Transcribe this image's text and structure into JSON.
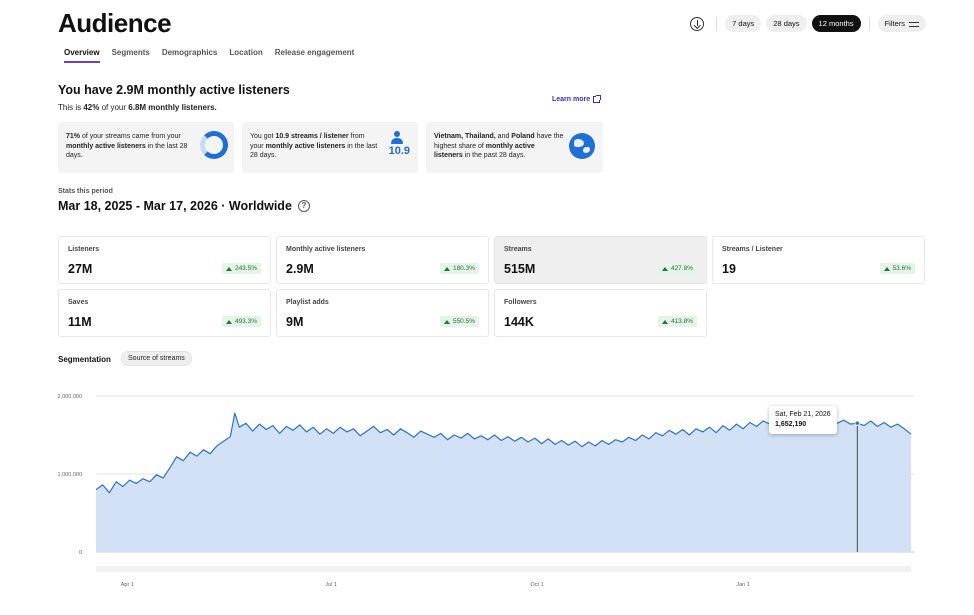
{
  "page": {
    "title": "Audience"
  },
  "tabs": [
    {
      "label": "Overview",
      "active": true
    },
    {
      "label": "Segments"
    },
    {
      "label": "Demographics"
    },
    {
      "label": "Location"
    },
    {
      "label": "Release engagement"
    }
  ],
  "controls": {
    "download_icon": "download-icon",
    "ranges": [
      {
        "label": "7 days"
      },
      {
        "label": "28 days"
      },
      {
        "label": "12 months",
        "active": true
      }
    ],
    "filters_label": "Filters"
  },
  "headline": {
    "title": "You have 2.9M monthly active listeners",
    "sub_prefix": "This is ",
    "sub_pct": "42%",
    "sub_mid": " of your ",
    "sub_total": "6.8M monthly listeners.",
    "learn_more": "Learn more"
  },
  "insights": [
    {
      "p1": "71%",
      "p2": " of your streams came from your ",
      "p3": "monthly active listeners",
      "p4": " in the last 28 days."
    },
    {
      "p1": "You got ",
      "p2": "10.9 streams / listener",
      "p3": " from your ",
      "p4": "monthly active listeners",
      "p5": " in the last 28 days.",
      "big": "10.9"
    },
    {
      "p1": "Vietnam, Thailand,",
      "p2": " and ",
      "p3": "Poland",
      "p4": " have the highest share of ",
      "p5": "monthly active listeners",
      "p6": " in the past 28 days."
    }
  ],
  "stats": {
    "label": "Stats this period",
    "period": "Mar 18, 2025 - Mar 17, 2026 · Worldwide",
    "help": "?"
  },
  "metrics": [
    {
      "label": "Listeners",
      "value": "27M",
      "change": "243.5%"
    },
    {
      "label": "Monthly active listeners",
      "value": "2.9M",
      "change": "180.3%"
    },
    {
      "label": "Streams",
      "value": "515M",
      "change": "427.8%",
      "active": true
    },
    {
      "label": "Streams / Listener",
      "value": "19",
      "change": "53.6%"
    },
    {
      "label": "Saves",
      "value": "11M",
      "change": "493.3%"
    },
    {
      "label": "Playlist adds",
      "value": "9M",
      "change": "550.5%"
    },
    {
      "label": "Followers",
      "value": "144K",
      "change": "413.8%"
    }
  ],
  "segmentation": {
    "title": "Segmentation",
    "chip": "Source of streams"
  },
  "tooltip": {
    "date": "Sat, Feb 21, 2026",
    "value": "1,652,190"
  },
  "colors": {
    "line": "#2d73c8",
    "fill": "#d3e1f7",
    "accent": "#6b3fd1",
    "positive": "#1a7a32"
  },
  "chart_data": {
    "type": "area",
    "ylim": [
      0,
      2000000
    ],
    "yticks": [
      {
        "value": 0,
        "label": "0"
      },
      {
        "value": 1000000,
        "label": "1,000,000"
      },
      {
        "value": 2000000,
        "label": "2,000,000"
      }
    ],
    "xticks": [
      {
        "x": "2025-04-01",
        "label": "Apr 1"
      },
      {
        "x": "2025-07-01",
        "label": "Jul 1"
      },
      {
        "x": "2025-10-01",
        "label": "Oct 1"
      },
      {
        "x": "2026-01-01",
        "label": "Jan 1"
      }
    ],
    "xrange": [
      "2025-03-18",
      "2026-03-17"
    ],
    "highlight": {
      "x": "2026-02-21",
      "y": 1652190
    },
    "series": [
      {
        "points": [
          [
            "2025-03-18",
            800000
          ],
          [
            "2025-03-21",
            860000
          ],
          [
            "2025-03-24",
            760000
          ],
          [
            "2025-03-27",
            900000
          ],
          [
            "2025-03-30",
            840000
          ],
          [
            "2025-04-02",
            920000
          ],
          [
            "2025-04-05",
            880000
          ],
          [
            "2025-04-08",
            940000
          ],
          [
            "2025-04-11",
            900000
          ],
          [
            "2025-04-14",
            990000
          ],
          [
            "2025-04-17",
            950000
          ],
          [
            "2025-04-20",
            1080000
          ],
          [
            "2025-04-23",
            1220000
          ],
          [
            "2025-04-26",
            1170000
          ],
          [
            "2025-04-29",
            1280000
          ],
          [
            "2025-05-02",
            1230000
          ],
          [
            "2025-05-05",
            1310000
          ],
          [
            "2025-05-08",
            1260000
          ],
          [
            "2025-05-11",
            1360000
          ],
          [
            "2025-05-14",
            1420000
          ],
          [
            "2025-05-17",
            1480000
          ],
          [
            "2025-05-19",
            1780000
          ],
          [
            "2025-05-21",
            1600000
          ],
          [
            "2025-05-24",
            1650000
          ],
          [
            "2025-05-27",
            1550000
          ],
          [
            "2025-05-30",
            1640000
          ],
          [
            "2025-06-02",
            1570000
          ],
          [
            "2025-06-05",
            1620000
          ],
          [
            "2025-06-08",
            1520000
          ],
          [
            "2025-06-11",
            1610000
          ],
          [
            "2025-06-14",
            1560000
          ],
          [
            "2025-06-17",
            1630000
          ],
          [
            "2025-06-20",
            1540000
          ],
          [
            "2025-06-23",
            1600000
          ],
          [
            "2025-06-26",
            1510000
          ],
          [
            "2025-06-29",
            1580000
          ],
          [
            "2025-07-02",
            1520000
          ],
          [
            "2025-07-05",
            1600000
          ],
          [
            "2025-07-08",
            1540000
          ],
          [
            "2025-07-11",
            1580000
          ],
          [
            "2025-07-14",
            1490000
          ],
          [
            "2025-07-17",
            1550000
          ],
          [
            "2025-07-20",
            1610000
          ],
          [
            "2025-07-23",
            1530000
          ],
          [
            "2025-07-26",
            1570000
          ],
          [
            "2025-07-29",
            1500000
          ],
          [
            "2025-08-01",
            1580000
          ],
          [
            "2025-08-04",
            1530000
          ],
          [
            "2025-08-07",
            1470000
          ],
          [
            "2025-08-10",
            1550000
          ],
          [
            "2025-08-13",
            1510000
          ],
          [
            "2025-08-16",
            1470000
          ],
          [
            "2025-08-19",
            1520000
          ],
          [
            "2025-08-22",
            1440000
          ],
          [
            "2025-08-25",
            1500000
          ],
          [
            "2025-08-28",
            1460000
          ],
          [
            "2025-08-31",
            1520000
          ],
          [
            "2025-09-03",
            1450000
          ],
          [
            "2025-09-06",
            1490000
          ],
          [
            "2025-09-09",
            1440000
          ],
          [
            "2025-09-12",
            1500000
          ],
          [
            "2025-09-15",
            1430000
          ],
          [
            "2025-09-18",
            1480000
          ],
          [
            "2025-09-21",
            1420000
          ],
          [
            "2025-09-24",
            1470000
          ],
          [
            "2025-09-27",
            1410000
          ],
          [
            "2025-09-30",
            1460000
          ],
          [
            "2025-10-03",
            1390000
          ],
          [
            "2025-10-06",
            1450000
          ],
          [
            "2025-10-09",
            1380000
          ],
          [
            "2025-10-12",
            1430000
          ],
          [
            "2025-10-15",
            1370000
          ],
          [
            "2025-10-18",
            1420000
          ],
          [
            "2025-10-21",
            1350000
          ],
          [
            "2025-10-24",
            1410000
          ],
          [
            "2025-10-27",
            1360000
          ],
          [
            "2025-10-30",
            1430000
          ],
          [
            "2025-11-02",
            1380000
          ],
          [
            "2025-11-05",
            1440000
          ],
          [
            "2025-11-08",
            1410000
          ],
          [
            "2025-11-11",
            1470000
          ],
          [
            "2025-11-14",
            1430000
          ],
          [
            "2025-11-17",
            1500000
          ],
          [
            "2025-11-20",
            1450000
          ],
          [
            "2025-11-23",
            1530000
          ],
          [
            "2025-11-26",
            1490000
          ],
          [
            "2025-11-29",
            1560000
          ],
          [
            "2025-12-02",
            1510000
          ],
          [
            "2025-12-05",
            1570000
          ],
          [
            "2025-12-08",
            1500000
          ],
          [
            "2025-12-11",
            1580000
          ],
          [
            "2025-12-14",
            1540000
          ],
          [
            "2025-12-17",
            1600000
          ],
          [
            "2025-12-20",
            1530000
          ],
          [
            "2025-12-23",
            1620000
          ],
          [
            "2025-12-26",
            1560000
          ],
          [
            "2025-12-29",
            1640000
          ],
          [
            "2026-01-01",
            1580000
          ],
          [
            "2026-01-04",
            1660000
          ],
          [
            "2026-01-07",
            1610000
          ],
          [
            "2026-01-10",
            1680000
          ],
          [
            "2026-01-13",
            1640000
          ],
          [
            "2026-01-16",
            1700000
          ],
          [
            "2026-01-19",
            1650000
          ],
          [
            "2026-01-22",
            1720000
          ],
          [
            "2026-01-25",
            1680000
          ],
          [
            "2026-01-28",
            1740000
          ],
          [
            "2026-01-31",
            1690000
          ],
          [
            "2026-02-03",
            1760000
          ],
          [
            "2026-02-06",
            1710000
          ],
          [
            "2026-02-09",
            1700000
          ],
          [
            "2026-02-12",
            1650000
          ],
          [
            "2026-02-15",
            1690000
          ],
          [
            "2026-02-18",
            1640000
          ],
          [
            "2026-02-21",
            1652190
          ],
          [
            "2026-02-24",
            1620000
          ],
          [
            "2026-02-27",
            1680000
          ],
          [
            "2026-03-02",
            1610000
          ],
          [
            "2026-03-05",
            1660000
          ],
          [
            "2026-03-08",
            1600000
          ],
          [
            "2026-03-11",
            1640000
          ],
          [
            "2026-03-14",
            1580000
          ],
          [
            "2026-03-17",
            1510000
          ]
        ]
      }
    ]
  }
}
